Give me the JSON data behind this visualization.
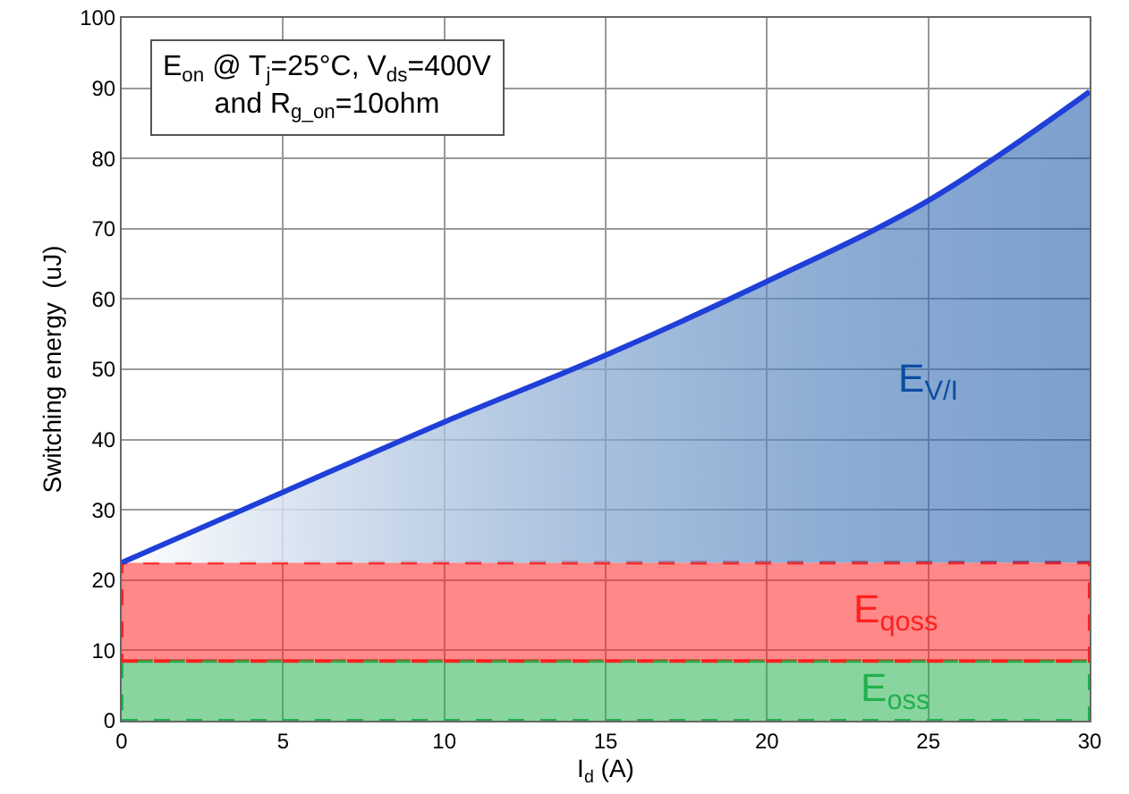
{
  "chart_data": {
    "type": "area",
    "xlabel": "I$_{d}$ (A)",
    "ylabel": "Switching energy  (uJ)",
    "x": [
      0,
      5,
      10,
      15,
      20,
      25,
      30
    ],
    "series": [
      {
        "name": "E$_{V/I}$",
        "color": "#0b4ea2",
        "values": [
          22.5,
          32.5,
          42.5,
          52,
          62.5,
          74,
          89.5
        ]
      }
    ],
    "bands": [
      {
        "axis": "y",
        "from": 0,
        "to": 8.5,
        "label": "E$_{oss}$",
        "color": "#22b14c"
      },
      {
        "axis": "y",
        "from": 8.5,
        "to": 22.5,
        "label": "E$_{qoss}$",
        "color": "#ff2020"
      }
    ],
    "annotations": [
      "E$_{on}$ @ T$_{j}$=25°C, V$_{ds}$=400V\nand R$_{g_on}$=10ohm"
    ],
    "xlim": [
      0,
      30
    ],
    "ylim": [
      0,
      100
    ],
    "xticks": [
      0,
      5,
      10,
      15,
      20,
      25,
      30
    ],
    "yticks": [
      0,
      10,
      20,
      30,
      40,
      50,
      60,
      70,
      80,
      90,
      100
    ],
    "grid": true
  }
}
